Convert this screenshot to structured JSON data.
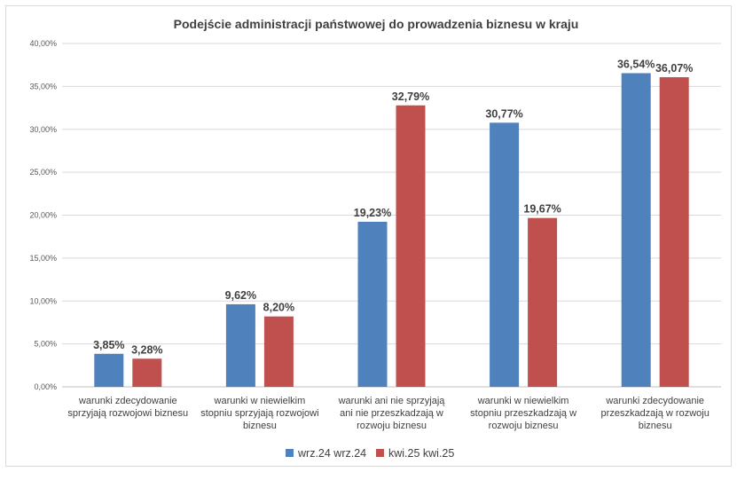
{
  "chart_data": {
    "type": "bar",
    "title": "Podejście administracji państwowej do prowadzenia biznesu w kraju",
    "xlabel": "",
    "ylabel": "",
    "ylim": [
      0,
      40
    ],
    "yticks": [
      "0,00%",
      "5,00%",
      "10,00%",
      "15,00%",
      "20,00%",
      "25,00%",
      "30,00%",
      "35,00%",
      "40,00%"
    ],
    "grid": true,
    "legend_position": "bottom",
    "categories": [
      [
        "warunki zdecydowanie",
        "sprzyjają rozwojowi biznesu"
      ],
      [
        "warunki w niewielkim",
        "stopniu sprzyjają rozwojowi",
        "biznesu"
      ],
      [
        "warunki ani nie sprzyjają",
        "ani nie przeszkadzają w",
        "rozwoju biznesu"
      ],
      [
        "warunki w niewielkim",
        "stopniu przeszkadzają w",
        "rozwoju biznesu"
      ],
      [
        "warunki zdecydowanie",
        "przeszkadzają w rozwoju",
        "biznesu"
      ]
    ],
    "series": [
      {
        "name": "wrz.24 wrz.24",
        "color": "#4f81bd",
        "values": [
          3.85,
          9.62,
          19.23,
          30.77,
          36.54
        ],
        "labels": [
          "3,85%",
          "9,62%",
          "19,23%",
          "30,77%",
          "36,54%"
        ]
      },
      {
        "name": "kwi.25 kwi.25",
        "color": "#c0504d",
        "values": [
          3.28,
          8.2,
          32.79,
          19.67,
          36.07
        ],
        "labels": [
          "3,28%",
          "8,20%",
          "32,79%",
          "19,67%",
          "36,07%"
        ]
      }
    ]
  }
}
